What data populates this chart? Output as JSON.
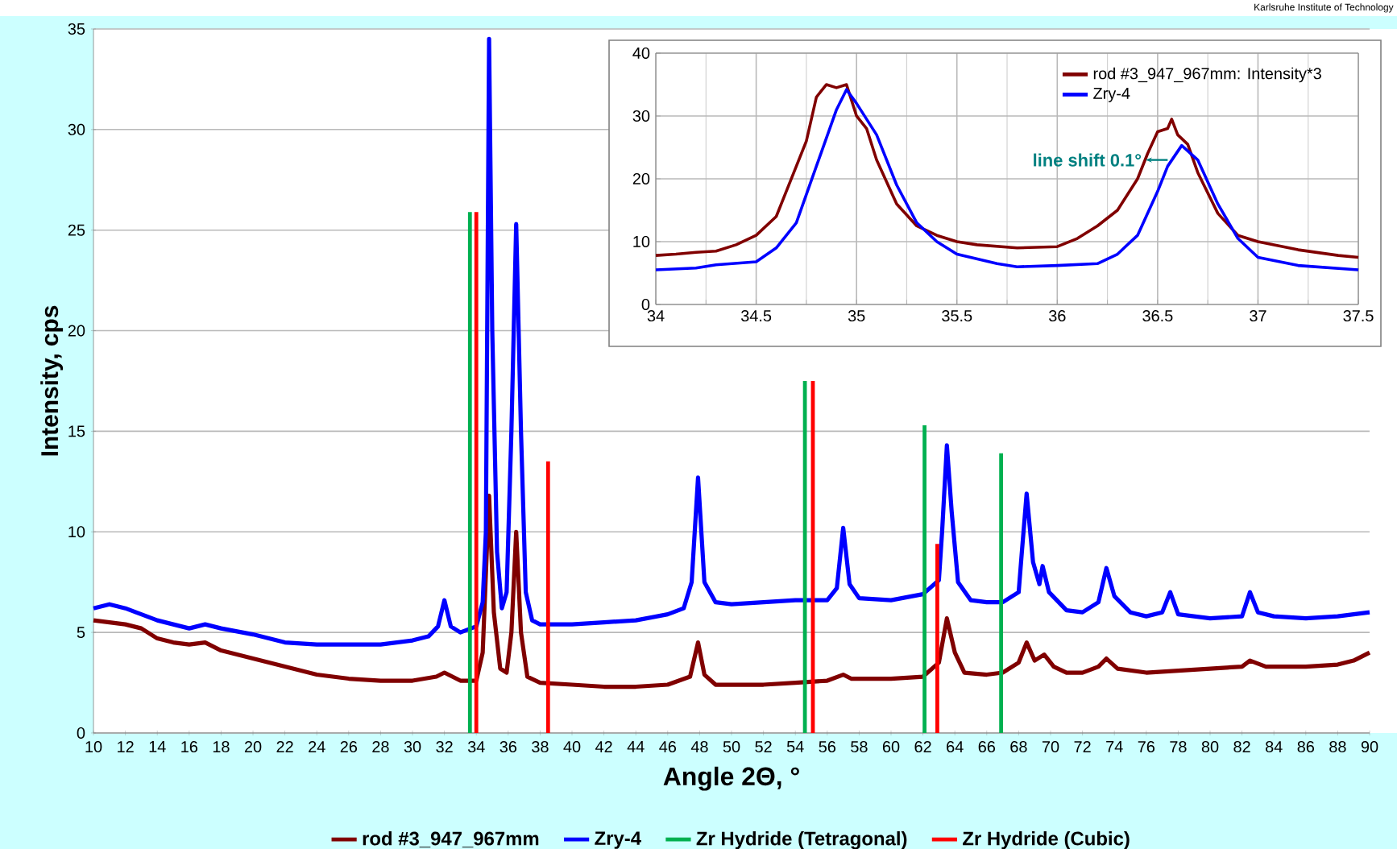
{
  "chart_data": [
    {
      "type": "line",
      "xlabel": "Angle 2Θ, °",
      "ylabel": "Intensity, cps",
      "annotations": [
        "Karlsruhe Institute of Technology"
      ],
      "xlim": [
        10,
        90
      ],
      "ylim": [
        0,
        35
      ],
      "xticks": [
        10,
        12,
        14,
        16,
        18,
        20,
        22,
        24,
        26,
        28,
        30,
        32,
        34,
        36,
        38,
        40,
        42,
        44,
        46,
        48,
        50,
        52,
        54,
        56,
        58,
        60,
        62,
        64,
        66,
        68,
        70,
        72,
        74,
        76,
        78,
        80,
        82,
        84,
        86,
        88,
        90
      ],
      "yticks": [
        0,
        5,
        10,
        15,
        20,
        25,
        30,
        35
      ],
      "grid": "y",
      "legend": "bottom",
      "series": [
        {
          "name": "rod #3_947_967mm",
          "color": "#800000",
          "x": [
            10,
            12,
            13,
            14,
            15,
            16,
            17,
            18,
            20,
            22,
            24,
            26,
            28,
            30,
            31.5,
            32,
            32.5,
            33,
            34,
            34.4,
            34.8,
            35.1,
            35.5,
            35.9,
            36.2,
            36.5,
            36.8,
            37.2,
            38,
            40,
            42,
            44,
            46,
            47.4,
            47.9,
            48.3,
            49,
            52,
            54,
            56,
            57,
            57.5,
            60,
            62,
            63,
            63.5,
            64,
            64.6,
            66,
            67,
            68,
            68.5,
            69,
            69.6,
            70.2,
            71,
            72,
            73,
            73.5,
            74.2,
            76,
            78,
            80,
            82,
            82.5,
            83.5,
            86,
            88,
            89,
            90
          ],
          "values": [
            5.6,
            5.4,
            5.2,
            4.7,
            4.5,
            4.4,
            4.5,
            4.1,
            3.7,
            3.3,
            2.9,
            2.7,
            2.6,
            2.6,
            2.8,
            3.0,
            2.8,
            2.6,
            2.6,
            4,
            11.8,
            6,
            3.2,
            3,
            5,
            10,
            5,
            2.8,
            2.5,
            2.4,
            2.3,
            2.3,
            2.4,
            2.8,
            4.5,
            2.9,
            2.4,
            2.4,
            2.5,
            2.6,
            2.9,
            2.7,
            2.7,
            2.8,
            3.5,
            5.7,
            4,
            3.0,
            2.9,
            3.0,
            3.5,
            4.5,
            3.6,
            3.9,
            3.3,
            3.0,
            3.0,
            3.3,
            3.7,
            3.2,
            3.0,
            3.1,
            3.2,
            3.3,
            3.6,
            3.3,
            3.3,
            3.4,
            3.6,
            4.0
          ]
        },
        {
          "name": "Zry-4",
          "color": "#0000ff",
          "x": [
            10,
            11,
            12,
            13,
            14,
            15,
            16,
            17,
            18,
            20,
            22,
            24,
            26,
            28,
            30,
            31,
            31.6,
            32,
            32.4,
            33,
            34,
            34.4,
            34.6,
            34.8,
            35.0,
            35.3,
            35.6,
            35.9,
            36.2,
            36.5,
            36.8,
            37.1,
            37.5,
            38,
            40,
            42,
            44,
            46,
            47,
            47.5,
            47.9,
            48.3,
            49,
            50,
            52,
            54,
            56,
            56.6,
            57.0,
            57.4,
            58,
            60,
            62,
            63,
            63.2,
            63.5,
            63.8,
            64.2,
            65,
            66,
            67,
            68,
            68.2,
            68.5,
            68.9,
            69.3,
            69.5,
            69.9,
            71,
            72,
            73,
            73.5,
            74,
            75,
            76,
            77,
            77.5,
            78,
            80,
            82,
            82.5,
            83,
            84,
            86,
            88,
            90
          ],
          "values": [
            6.2,
            6.4,
            6.2,
            5.9,
            5.6,
            5.4,
            5.2,
            5.4,
            5.2,
            4.9,
            4.5,
            4.4,
            4.4,
            4.4,
            4.6,
            4.8,
            5.3,
            6.6,
            5.3,
            5.0,
            5.3,
            6.5,
            10,
            34.5,
            20,
            9,
            6.2,
            7,
            15,
            25.3,
            15,
            7,
            5.6,
            5.4,
            5.4,
            5.5,
            5.6,
            5.9,
            6.2,
            7.5,
            12.7,
            7.5,
            6.5,
            6.4,
            6.5,
            6.6,
            6.6,
            7.2,
            10.2,
            7.4,
            6.7,
            6.6,
            6.9,
            7.6,
            10,
            14.3,
            11,
            7.5,
            6.6,
            6.5,
            6.5,
            7,
            9,
            11.9,
            8.5,
            7.4,
            8.3,
            7,
            6.1,
            6,
            6.5,
            8.2,
            6.8,
            6,
            5.8,
            6,
            7,
            5.9,
            5.7,
            5.8,
            7,
            6,
            5.8,
            5.7,
            5.8,
            6.0
          ]
        },
        {
          "name": "Zr Hydride (Tetragonal)",
          "color": "#00b050",
          "type": "bar",
          "x": [
            33.6,
            54.6,
            62.1,
            66.9
          ],
          "values": [
            25.9,
            17.5,
            15.3,
            13.9
          ]
        },
        {
          "name": "Zr Hydride (Cubic)",
          "color": "#ff0000",
          "type": "bar",
          "x": [
            34.0,
            38.5,
            55.1,
            62.9
          ],
          "values": [
            25.9,
            13.5,
            17.5,
            9.4
          ]
        }
      ]
    },
    {
      "type": "line",
      "annotations": [
        {
          "text": "line shift 0.1°",
          "x": 36.43,
          "y": 23
        }
      ],
      "xlim": [
        34,
        37.5
      ],
      "ylim": [
        0,
        40
      ],
      "xticks": [
        34,
        34.5,
        35,
        35.5,
        36,
        36.5,
        37,
        37.5
      ],
      "yticks": [
        0,
        10,
        20,
        30,
        40
      ],
      "grid": true,
      "legend": "top right",
      "series": [
        {
          "name": "rod #3_947_967mm: Intensity*3",
          "color": "#800000",
          "x": [
            34,
            34.1,
            34.2,
            34.3,
            34.4,
            34.5,
            34.6,
            34.7,
            34.75,
            34.8,
            34.85,
            34.9,
            34.95,
            35.0,
            35.05,
            35.1,
            35.2,
            35.3,
            35.4,
            35.5,
            35.6,
            35.8,
            36.0,
            36.1,
            36.2,
            36.3,
            36.4,
            36.45,
            36.5,
            36.55,
            36.57,
            36.6,
            36.65,
            36.7,
            36.8,
            36.9,
            37.0,
            37.2,
            37.4,
            37.5
          ],
          "values": [
            7.8,
            8,
            8.3,
            8.5,
            9.5,
            11,
            14,
            22,
            26,
            33,
            35,
            34.5,
            35,
            30,
            28,
            23,
            16,
            12.5,
            11,
            10,
            9.5,
            9,
            9.2,
            10.5,
            12.5,
            15,
            20,
            24,
            27.5,
            28,
            29.5,
            27,
            25.5,
            21,
            14.5,
            11,
            10,
            8.7,
            7.8,
            7.5
          ]
        },
        {
          "name": "Zry-4",
          "color": "#0000ff",
          "x": [
            34,
            34.2,
            34.3,
            34.5,
            34.6,
            34.7,
            34.8,
            34.9,
            34.95,
            35.0,
            35.1,
            35.2,
            35.3,
            35.4,
            35.5,
            35.7,
            35.8,
            36.0,
            36.2,
            36.3,
            36.4,
            36.5,
            36.55,
            36.62,
            36.7,
            36.8,
            36.9,
            37.0,
            37.2,
            37.5
          ],
          "values": [
            5.5,
            5.8,
            6.3,
            6.8,
            9,
            13,
            22,
            31,
            34.2,
            32,
            27,
            19,
            13,
            10,
            8,
            6.5,
            6,
            6.2,
            6.5,
            8,
            11,
            18,
            22,
            25.3,
            23,
            16,
            10.5,
            7.5,
            6.2,
            5.5
          ]
        }
      ]
    }
  ]
}
